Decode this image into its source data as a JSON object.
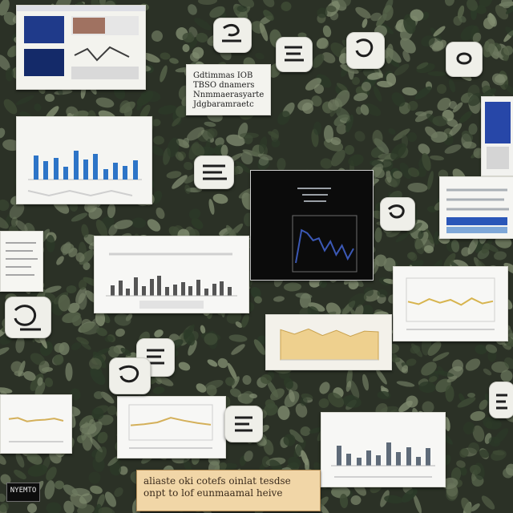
{
  "scene": {
    "kind": "corkboard-wall-collage",
    "background_color": "#2b3126",
    "foliage_colors": [
      "#3e4b35",
      "#56634a",
      "#6e7a60",
      "#7f8b6f",
      "#2c3a28"
    ],
    "paper_color": "#f3f3ee",
    "dark_panel_color": "#0b0b0b",
    "accent_blue": "#1f3a8a",
    "accent_yellow": "#d8b24a"
  },
  "text": {
    "caption_card": "Gdtimmas IOB\nTBSO dnamers\nNnmmaerasyarte\nJdgbaramraetc",
    "banner": "aliaste oki cotefs oinlat tesdse\nonpt to lof eunmaamal heive",
    "tag": "NYEMTO"
  },
  "pieces": [
    {
      "name": "top-left-blue-diagram-card",
      "kind": "diagram",
      "accent": "#1f3a8a"
    },
    {
      "name": "caption-card",
      "kind": "text"
    },
    {
      "name": "bar-chart-card-left",
      "kind": "bar",
      "bar_color": "#2d74c7",
      "bars": [
        0.62,
        0.48,
        0.56,
        0.34,
        0.74,
        0.52,
        0.67,
        0.28,
        0.44,
        0.36,
        0.49
      ]
    },
    {
      "name": "dark-line-chart-card",
      "kind": "line",
      "line_color": "#3b58b5",
      "points": [
        0.86,
        0.22,
        0.28,
        0.42,
        0.38,
        0.62,
        0.44,
        0.7,
        0.52,
        0.78,
        0.58
      ]
    },
    {
      "name": "middle-histogram-card",
      "kind": "histogram",
      "bar_color": "#555555",
      "bars": [
        0.32,
        0.45,
        0.22,
        0.55,
        0.28,
        0.5,
        0.6,
        0.25,
        0.33,
        0.4,
        0.29,
        0.47,
        0.21,
        0.36,
        0.44,
        0.26
      ]
    },
    {
      "name": "right-yellow-line-card",
      "kind": "line",
      "line_color": "#d7b44e",
      "points": [
        0.55,
        0.62,
        0.48,
        0.58,
        0.5,
        0.64,
        0.46,
        0.6,
        0.54
      ]
    },
    {
      "name": "center-yellow-area-card",
      "kind": "area",
      "fill_color": "#eed08e",
      "points": [
        0.18,
        0.3,
        0.16,
        0.34,
        0.2,
        0.36,
        0.22,
        0.24
      ]
    },
    {
      "name": "bottom-left-yellow-card",
      "kind": "line",
      "line_color": "#d4b05a",
      "points": [
        0.44,
        0.4,
        0.52,
        0.48,
        0.46,
        0.42,
        0.5
      ]
    },
    {
      "name": "bottom-middle-yellow-card",
      "kind": "line",
      "line_color": "#d4b05a",
      "points": [
        0.6,
        0.56,
        0.5,
        0.34,
        0.44,
        0.52,
        0.58
      ]
    },
    {
      "name": "bottom-right-gray-bars-card",
      "kind": "bar",
      "bar_color": "#5f6b79",
      "bars": [
        0.55,
        0.32,
        0.22,
        0.41,
        0.29,
        0.62,
        0.38,
        0.51,
        0.24,
        0.47
      ]
    },
    {
      "name": "right-blue-panel-card",
      "kind": "panel",
      "accent": "#2747a8"
    },
    {
      "name": "right-list-card",
      "kind": "text"
    }
  ],
  "stickies": [
    {
      "name": "sticky-top-1",
      "accent": "#1e1e1e"
    },
    {
      "name": "sticky-top-2",
      "accent": "#1e1e1e"
    },
    {
      "name": "sticky-top-3",
      "accent": "#1e1e1e"
    },
    {
      "name": "sticky-top-4",
      "accent": "#1e1e1e"
    },
    {
      "name": "sticky-mid-1",
      "accent": "#1e1e1e"
    },
    {
      "name": "sticky-mid-2",
      "accent": "#1e1e1e"
    },
    {
      "name": "sticky-left-1",
      "accent": "#1e1e1e"
    },
    {
      "name": "sticky-bottom-1",
      "accent": "#1e1e1e"
    },
    {
      "name": "sticky-bottom-2",
      "accent": "#1e1e1e"
    },
    {
      "name": "sticky-bottom-3",
      "accent": "#1e1e1e"
    },
    {
      "name": "sticky-far-right",
      "accent": "#1e1e1e"
    }
  ]
}
